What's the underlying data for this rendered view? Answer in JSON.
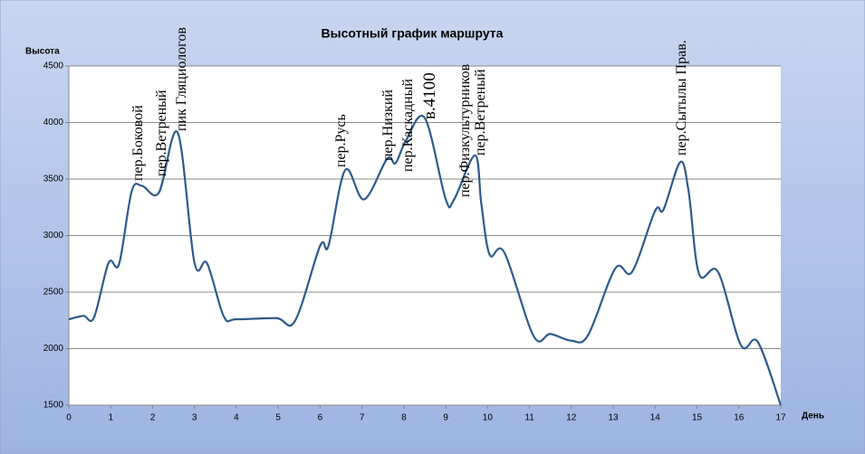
{
  "chart_data": {
    "type": "line",
    "title": "Высотный график маршрута",
    "y_label": "Высота",
    "x_label": "День",
    "x": [
      0,
      0.35,
      0.6,
      0.95,
      1.2,
      1.5,
      1.75,
      2.15,
      2.6,
      3.0,
      3.3,
      3.7,
      4.0,
      4.95,
      5.4,
      6.0,
      6.2,
      6.6,
      7.05,
      7.6,
      7.8,
      8.05,
      8.5,
      9.0,
      9.2,
      9.7,
      9.85,
      10.05,
      10.4,
      11.1,
      11.5,
      12.0,
      12.4,
      13.05,
      13.45,
      14.0,
      14.2,
      14.6,
      14.8,
      15.05,
      15.5,
      16.05,
      16.45,
      17
    ],
    "series": [
      {
        "name": "Высота",
        "color": "#2f5a8c",
        "values": [
          2260,
          2290,
          2275,
          2760,
          2750,
          3390,
          3440,
          3380,
          3910,
          2760,
          2755,
          2285,
          2260,
          2270,
          2245,
          2910,
          2910,
          3580,
          3320,
          3680,
          3640,
          3840,
          4040,
          3320,
          3320,
          3710,
          3280,
          2830,
          2850,
          2110,
          2130,
          2070,
          2120,
          2710,
          2680,
          3220,
          3230,
          3650,
          3390,
          2660,
          2680,
          2030,
          2060,
          1500
        ]
      }
    ],
    "xlim": [
      0,
      17
    ],
    "xticks": [
      0,
      1,
      2,
      3,
      4,
      5,
      6,
      7,
      8,
      9,
      10,
      11,
      12,
      13,
      14,
      15,
      16,
      17
    ],
    "ylim": [
      1500,
      4500
    ],
    "yticks": [
      1500,
      2000,
      2500,
      3000,
      3500,
      4000,
      4500
    ],
    "grid": true,
    "annotations": [
      "пер.Боковой",
      "пер.Ветреный",
      "пик Гляциологов",
      "пер.Русь",
      "пер.Низкий",
      "пер.Каскадный",
      "в.4100",
      "пер.Физкультурников",
      "пер.Ветреный",
      "пер.Сытылы Прав."
    ]
  }
}
